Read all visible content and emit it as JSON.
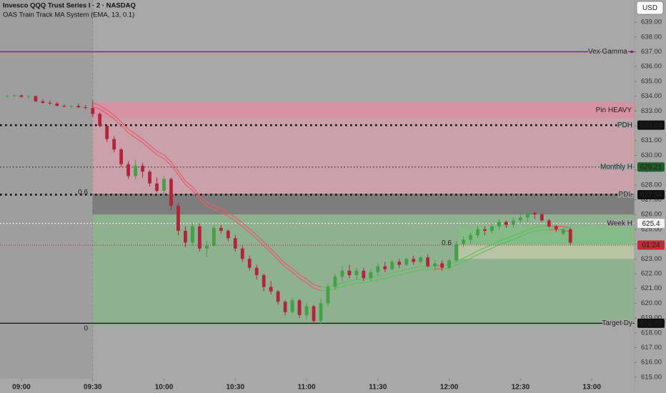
{
  "chart_data": {
    "type": "candlestick",
    "title": "Invesco QQQ Trust Series I · 2 · NASDAQ",
    "subtitle": "OAS Train Track MA System (EMA, 13, 0.1)",
    "currency": "USD",
    "xlim": [
      "08:51",
      "13:18"
    ],
    "xticks": [
      "09:00",
      "09:30",
      "10:00",
      "10:30",
      "11:00",
      "11:30",
      "12:00",
      "12:30",
      "13:00"
    ],
    "ylim": [
      614.9,
      640.5
    ],
    "yticks": [
      {
        "value": 615,
        "label": "615.00"
      },
      {
        "value": 616,
        "label": "616.00"
      },
      {
        "value": 617,
        "label": "617.00"
      },
      {
        "value": 618,
        "label": "618.00"
      },
      {
        "value": 619,
        "label": "619.00"
      },
      {
        "value": 620,
        "label": "620.00"
      },
      {
        "value": 621,
        "label": "621.00"
      },
      {
        "value": 622,
        "label": "622.00"
      },
      {
        "value": 623,
        "label": "623.00"
      },
      {
        "value": 624,
        "label": "624.00"
      },
      {
        "value": 625,
        "label": "625.00"
      },
      {
        "value": 626,
        "label": "626.00"
      },
      {
        "value": 627,
        "label": "627.00"
      },
      {
        "value": 628,
        "label": "628.00"
      },
      {
        "value": 629,
        "label": "629.00"
      },
      {
        "value": 630,
        "label": "630.00"
      },
      {
        "value": 631,
        "label": "631.00"
      },
      {
        "value": 632,
        "label": "632.00"
      },
      {
        "value": 633,
        "label": "633.00"
      },
      {
        "value": 634,
        "label": "634.00"
      },
      {
        "value": 635,
        "label": "635.00"
      },
      {
        "value": 636,
        "label": "636.00"
      },
      {
        "value": 637,
        "label": "637.00"
      },
      {
        "value": 638,
        "label": "638.00"
      },
      {
        "value": 639,
        "label": "639.00"
      }
    ],
    "up_color": "#43a047",
    "down_color": "#b3243a",
    "session_start": "09:30",
    "candles": {
      "x": [
        "08:54",
        "08:57",
        "09:00",
        "09:03",
        "09:06",
        "09:09",
        "09:12",
        "09:15",
        "09:18",
        "09:21",
        "09:24",
        "09:27",
        "09:30",
        "09:33",
        "09:36",
        "09:39",
        "09:42",
        "09:45",
        "09:48",
        "09:51",
        "09:54",
        "09:57",
        "10:00",
        "10:03",
        "10:06",
        "10:09",
        "10:12",
        "10:15",
        "10:18",
        "10:21",
        "10:24",
        "10:27",
        "10:30",
        "10:33",
        "10:36",
        "10:39",
        "10:42",
        "10:45",
        "10:48",
        "10:51",
        "10:54",
        "10:57",
        "11:00",
        "11:03",
        "11:06",
        "11:09",
        "11:12",
        "11:15",
        "11:18",
        "11:21",
        "11:24",
        "11:27",
        "11:30",
        "11:33",
        "11:36",
        "11:39",
        "11:42",
        "11:45",
        "11:48",
        "11:51",
        "11:54",
        "11:57",
        "12:00",
        "12:03",
        "12:06",
        "12:09",
        "12:12",
        "12:15",
        "12:18",
        "12:21",
        "12:24",
        "12:27",
        "12:30",
        "12:33",
        "12:36",
        "12:39",
        "12:42",
        "12:45",
        "12:48",
        "12:51"
      ],
      "open": [
        634.0,
        634.0,
        634.05,
        633.95,
        634.0,
        633.65,
        633.55,
        633.5,
        633.35,
        633.3,
        633.35,
        633.25,
        633.2,
        632.8,
        632.0,
        631.1,
        630.4,
        629.4,
        628.6,
        629.3,
        628.9,
        628.1,
        627.6,
        628.4,
        626.6,
        624.9,
        624.1,
        625.2,
        623.7,
        623.9,
        625.1,
        624.9,
        624.4,
        623.7,
        623.0,
        622.4,
        621.9,
        621.1,
        620.8,
        620.1,
        619.4,
        620.2,
        619.2,
        619.8,
        618.8,
        620.0,
        621.1,
        621.8,
        622.2,
        621.9,
        622.2,
        621.7,
        622.1,
        622.5,
        622.3,
        622.8,
        622.6,
        623.0,
        622.8,
        623.1,
        622.5,
        622.7,
        622.4,
        622.9,
        624.0,
        624.3,
        624.6,
        625.0,
        624.9,
        625.2,
        625.5,
        625.3,
        625.6,
        625.8,
        626.1,
        626.0,
        625.6,
        625.2,
        624.7,
        625.0
      ],
      "high": [
        634.1,
        634.1,
        634.1,
        634.1,
        634.05,
        633.8,
        633.7,
        633.6,
        633.45,
        633.4,
        633.5,
        633.4,
        633.7,
        632.9,
        632.1,
        631.3,
        630.5,
        629.6,
        629.7,
        629.5,
        629.0,
        628.5,
        628.6,
        628.5,
        626.8,
        625.2,
        625.4,
        625.4,
        624.2,
        625.3,
        625.3,
        625.0,
        624.6,
        623.9,
        623.2,
        622.6,
        622.0,
        621.5,
        620.9,
        620.2,
        620.4,
        620.3,
        620.0,
        619.9,
        620.3,
        621.3,
        622.0,
        622.5,
        622.6,
        622.4,
        622.4,
        622.3,
        622.7,
        622.8,
        622.9,
        623.0,
        623.1,
        623.2,
        623.2,
        623.3,
        622.9,
        622.9,
        623.0,
        624.2,
        624.5,
        624.8,
        625.2,
        625.2,
        625.4,
        625.7,
        625.6,
        625.8,
        626.0,
        626.3,
        626.2,
        626.1,
        625.7,
        625.3,
        625.1,
        625.1
      ],
      "low": [
        633.9,
        633.9,
        633.9,
        633.8,
        633.6,
        633.5,
        633.4,
        633.3,
        633.25,
        633.2,
        633.2,
        633.1,
        632.6,
        631.9,
        630.9,
        630.2,
        629.2,
        628.4,
        628.4,
        628.5,
        627.9,
        627.5,
        627.3,
        626.3,
        624.6,
        623.8,
        623.9,
        623.5,
        623.1,
        623.8,
        624.7,
        624.2,
        623.5,
        622.8,
        622.2,
        621.6,
        620.8,
        620.6,
        619.9,
        619.2,
        619.3,
        619.0,
        618.9,
        618.6,
        618.6,
        619.8,
        620.9,
        621.5,
        621.7,
        621.6,
        621.5,
        621.5,
        621.9,
        622.1,
        622.2,
        622.4,
        622.5,
        622.6,
        622.7,
        622.4,
        622.2,
        622.2,
        622.3,
        622.8,
        623.8,
        624.0,
        624.4,
        624.6,
        624.7,
        625.0,
        625.1,
        625.1,
        625.4,
        625.5,
        625.7,
        625.5,
        625.1,
        624.8,
        624.6,
        623.9
      ],
      "close": [
        634.0,
        634.05,
        633.95,
        634.0,
        633.65,
        633.55,
        633.5,
        633.35,
        633.3,
        633.35,
        633.25,
        633.2,
        632.8,
        632.0,
        631.1,
        630.4,
        629.4,
        628.6,
        629.3,
        628.9,
        628.1,
        627.6,
        628.4,
        626.6,
        624.9,
        624.1,
        625.2,
        623.7,
        623.9,
        625.1,
        624.9,
        624.4,
        623.7,
        623.0,
        622.4,
        621.9,
        621.1,
        620.8,
        620.1,
        619.4,
        620.2,
        619.2,
        619.8,
        618.8,
        620.0,
        621.1,
        621.8,
        622.2,
        621.9,
        622.2,
        621.7,
        622.1,
        622.5,
        622.3,
        622.8,
        622.6,
        623.0,
        622.8,
        623.1,
        622.5,
        622.7,
        622.4,
        622.9,
        624.0,
        624.3,
        624.6,
        625.0,
        624.9,
        625.2,
        625.5,
        625.3,
        625.6,
        625.8,
        626.1,
        626.0,
        625.6,
        625.2,
        625.0,
        625.0,
        624.1
      ]
    },
    "zones": [
      {
        "from": "09:30",
        "low": 627.4,
        "high": 633.6,
        "color": "rgba(245,150,175,0.45)"
      },
      {
        "name": "Pin HEAVY",
        "from": "09:30",
        "low": 632.5,
        "high": 633.6,
        "color": "rgba(235,120,150,0.35)"
      },
      {
        "from": "09:30",
        "low": 626.0,
        "high": 627.4,
        "color": "rgba(60,60,60,0.4)"
      },
      {
        "from": "09:30",
        "low": 618.5,
        "high": 626.0,
        "color": "rgba(110,190,110,0.42)"
      },
      {
        "from": "12:04",
        "low": 623.95,
        "high": 625.2,
        "color": "rgba(120,200,120,0.4)"
      },
      {
        "from": "12:04",
        "low": 623.0,
        "high": 623.95,
        "color": "rgba(235,220,190,0.45)"
      }
    ],
    "levels": [
      {
        "name": "Vex Gamma",
        "value": 637.0,
        "color": "#8e1a6f",
        "style": "solid"
      },
      {
        "name": "PDH",
        "value": 632.04,
        "color": "#111111",
        "style": "bigdots",
        "axis_tag": true,
        "tag_color": "#111111"
      },
      {
        "name": "Monthly H",
        "value": 629.21,
        "color": "#333333",
        "style": "dots",
        "axis_tag": true,
        "tag_color": "#1e5e2a"
      },
      {
        "name": "PDL",
        "value": 627.34,
        "color": "#111111",
        "style": "bigdots",
        "axis_tag": true,
        "tag_color": "#111111"
      },
      {
        "name": "Week H",
        "value": 625.4,
        "color": "#ffffff",
        "style": "dots",
        "axis_tag": true,
        "tag_color": "#f2f2f2"
      },
      {
        "name": "Target Dy",
        "value": 618.65,
        "color": "#111111",
        "style": "solid",
        "axis_tag": true,
        "tag_color": "#111111"
      }
    ],
    "annotations": [
      {
        "label": "0.6",
        "x": "09:28",
        "value": 627.5
      },
      {
        "label": "0.6",
        "x": "12:01",
        "value": 624.05
      },
      {
        "label": "0",
        "x": "09:28",
        "value": 618.3
      }
    ],
    "countdown": {
      "label": "01:24",
      "value": 623.93
    }
  }
}
